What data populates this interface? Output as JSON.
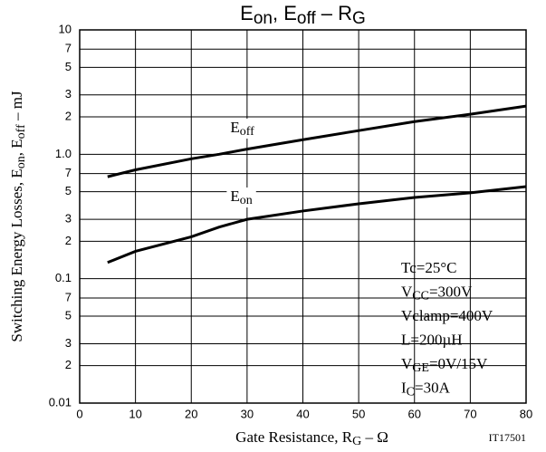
{
  "chart_data": {
    "type": "line",
    "title": [
      {
        "text": "E"
      },
      {
        "text": "on",
        "sub": true
      },
      {
        "text": ", E"
      },
      {
        "text": "off",
        "sub": true
      },
      {
        "text": " – R"
      },
      {
        "text": "G",
        "sub": true
      }
    ],
    "y_label": [
      {
        "text": "Switching Energy Losses, E"
      },
      {
        "text": "on",
        "sub": true
      },
      {
        "text": ", E"
      },
      {
        "text": "off",
        "sub": true
      },
      {
        "text": " – mJ"
      }
    ],
    "x_label": [
      {
        "text": "Gate Resistance, R"
      },
      {
        "text": "G",
        "sub": true
      },
      {
        "text": " – Ω"
      }
    ],
    "annotations": [
      [
        {
          "text": "Tc=25°C"
        }
      ],
      [
        {
          "text": "V"
        },
        {
          "text": "CC",
          "sub": true
        },
        {
          "text": "=300V"
        }
      ],
      [
        {
          "text": "Vclamp=400V"
        }
      ],
      [
        {
          "text": "L=200µH"
        }
      ],
      [
        {
          "text": "V"
        },
        {
          "text": "GE",
          "sub": true
        },
        {
          "text": "=0V/15V"
        }
      ],
      [
        {
          "text": "I"
        },
        {
          "text": "C",
          "sub": true
        },
        {
          "text": "=30A"
        }
      ]
    ],
    "figure_id": "IT17501",
    "x": [
      5,
      10,
      20,
      25,
      30,
      40,
      50,
      60,
      70,
      80
    ],
    "series": [
      {
        "name": "Eoff",
        "color": "#000000",
        "values": [
          0.66,
          0.75,
          0.92,
          1.0,
          1.1,
          1.31,
          1.55,
          1.83,
          2.1,
          2.44
        ]
      },
      {
        "name": "Eon",
        "color": "#000000",
        "values": [
          0.135,
          0.166,
          0.217,
          0.26,
          0.3,
          0.35,
          0.4,
          0.45,
          0.49,
          0.55
        ]
      }
    ],
    "xlim": [
      0,
      80
    ],
    "xticks": [
      0,
      10,
      20,
      30,
      40,
      50,
      60,
      70,
      80
    ],
    "ylim": [
      0.01,
      10
    ],
    "log_y": true,
    "yticks": [
      0.01,
      {
        "value": 0.02,
        "label": "2"
      },
      {
        "value": 0.03,
        "label": "3"
      },
      {
        "value": 0.05,
        "label": "5"
      },
      {
        "value": 0.07,
        "label": "7"
      },
      0.1,
      {
        "value": 0.2,
        "label": "2"
      },
      {
        "value": 0.3,
        "label": "3"
      },
      {
        "value": 0.5,
        "label": "5"
      },
      {
        "value": 0.7,
        "label": "7"
      },
      {
        "value": 1,
        "label": "1.0"
      },
      {
        "value": 2,
        "label": "2"
      },
      {
        "value": 3,
        "label": "3"
      },
      {
        "value": 5,
        "label": "5"
      },
      {
        "value": 7,
        "label": "7"
      },
      10
    ],
    "grid": true
  }
}
